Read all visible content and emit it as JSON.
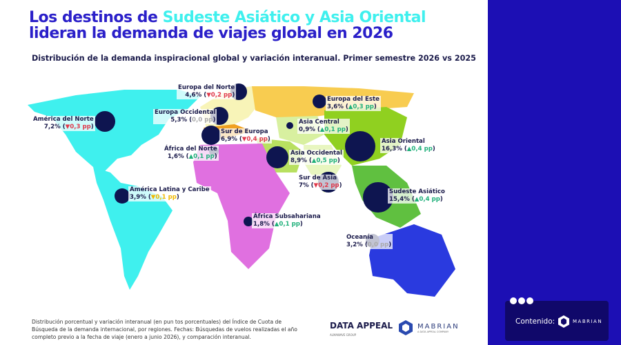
{
  "title": {
    "part1": "Los destinos de ",
    "highlight": "Sudeste Asiático y Asia Oriental",
    "part2": "lideran la demanda de viajes global en 2026"
  },
  "subtitle": "Distribución de la demanda inspiracional global y variación interanual. Primer semestre 2026 vs 2025",
  "chart_data": {
    "type": "map",
    "title": "Los destinos de Sudeste Asiático y Asia Oriental lideran la demanda de viajes global en 2026",
    "unit_share": "%",
    "unit_change": "pp",
    "regions": [
      {
        "name": "América del Norte",
        "share": "7,2%",
        "change": "▼0,3 pp",
        "trend": "down",
        "value": 7.2
      },
      {
        "name": "América Latina y Caribe",
        "share": "3,9%",
        "change": "▼0,1 pp",
        "trend": "down",
        "value": 3.9
      },
      {
        "name": "Europa del Norte",
        "share": "4,6%",
        "change": "▼0,2 pp",
        "trend": "down",
        "value": 4.6
      },
      {
        "name": "Europa Occidental",
        "share": "5,3%",
        "change": "0,0 pp",
        "trend": "flat",
        "value": 5.3
      },
      {
        "name": "Sur de Europa",
        "share": "6,9%",
        "change": "▼0,4 pp",
        "trend": "down",
        "value": 6.9
      },
      {
        "name": "África del Norte",
        "share": "1,6%",
        "change": "▲0,1 pp",
        "trend": "up",
        "value": 1.6
      },
      {
        "name": "África Subsahariana",
        "share": "1,8%",
        "change": "▲0,1 pp",
        "trend": "up",
        "value": 1.8
      },
      {
        "name": "Europa del Este",
        "share": "3,6%",
        "change": "▲0,3 pp",
        "trend": "up",
        "value": 3.6
      },
      {
        "name": "Asia Central",
        "share": "0,9%",
        "change": "▲0,1 pp",
        "trend": "up",
        "value": 0.9
      },
      {
        "name": "Asia Occidental",
        "share": "8,9%",
        "change": "▲0,5 pp",
        "trend": "up",
        "value": 8.9
      },
      {
        "name": "Sur de Asia",
        "share": "7%",
        "change": "▼0,2 pp",
        "trend": "down",
        "value": 7.0
      },
      {
        "name": "Asia Oriental",
        "share": "16,3%",
        "change": "▲0,4 pp",
        "trend": "up",
        "value": 16.3
      },
      {
        "name": "Sudeste Asiático",
        "share": "15,4%",
        "change": "▲0,4 pp",
        "trend": "up",
        "value": 15.4
      },
      {
        "name": "Oceanía",
        "share": "3,2%",
        "change": "0,0 pp",
        "trend": "flat",
        "value": 3.2
      }
    ]
  },
  "footnote": "Distribución porcentual y variación interanual (en pun tos porcentuales) del Índice de Cuota de Búsqueda de la demanda internacional, por regiones. Fechas: Búsquedas de vuelos realizadas el año completo previo a la fecha de viaje (enero a junio 2026), y comparación interanual.",
  "logos": {
    "dataappeal": "DATA APPEAL",
    "dataappeal_sub": "ALMAWAVE GROUP",
    "mabrian": "MABRIAN",
    "mabrian_sub": "A DATA APPEAL COMPANY"
  },
  "sidebar": {
    "content_label": "Contenido:",
    "brand": "MABRIAN"
  },
  "colors": {
    "accent": "#3ff0ee",
    "title": "#2a1fc9",
    "panel": "#1c0fb4",
    "up": "#1fb07a",
    "down": "#e0384a"
  }
}
